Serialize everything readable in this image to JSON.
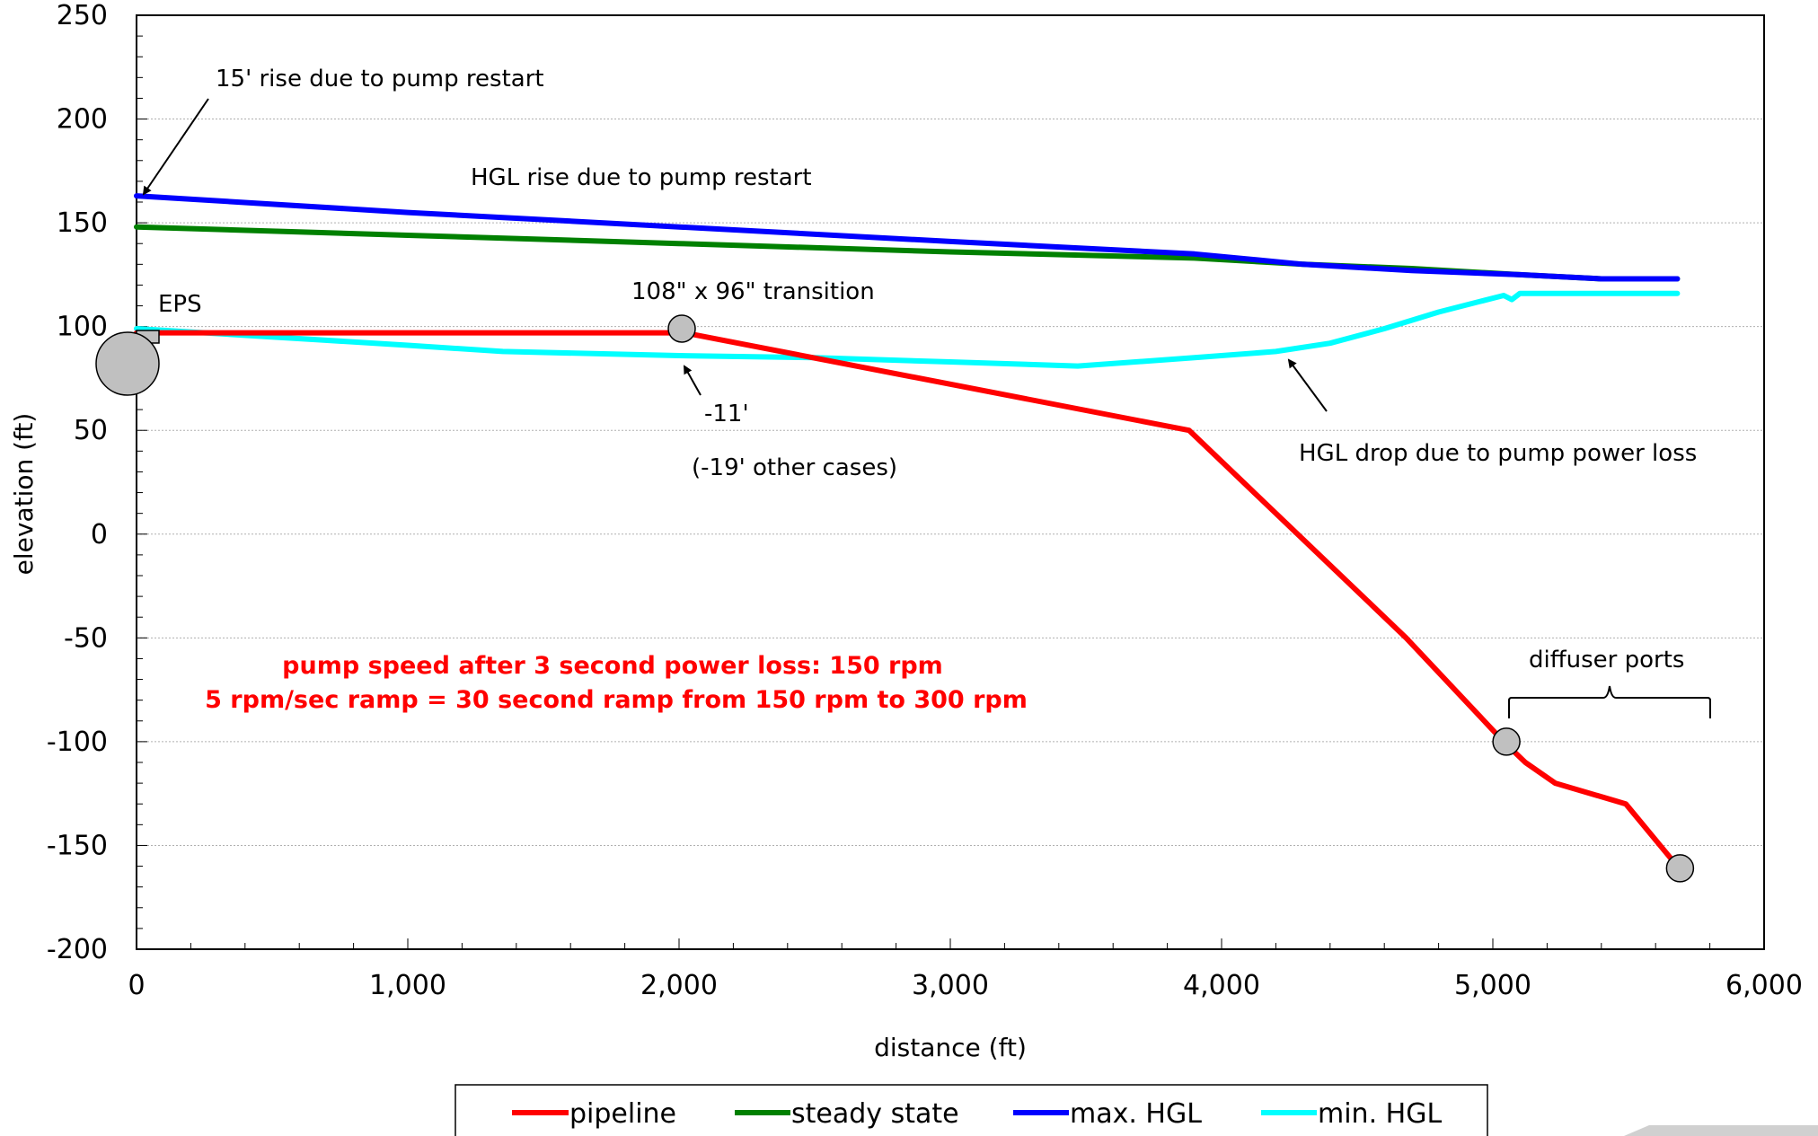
{
  "chart_data": {
    "type": "line",
    "xlabel": "distance (ft)",
    "ylabel": "elevation (ft)",
    "xlim": [
      0,
      6000
    ],
    "ylim": [
      -200,
      250
    ],
    "x_ticks": [
      0,
      1000,
      2000,
      3000,
      4000,
      5000,
      6000
    ],
    "x_tick_labels": [
      "0",
      "1,000",
      "2,000",
      "3,000",
      "4,000",
      "5,000",
      "6,000"
    ],
    "y_ticks": [
      250,
      200,
      150,
      100,
      50,
      0,
      -50,
      -100,
      -150,
      -200
    ],
    "y_tick_labels": [
      "250",
      "200",
      "150",
      "100",
      "50",
      "0",
      "-50",
      "-100",
      "-150",
      "-200"
    ],
    "grid": "horizontal",
    "legend_position": "bottom",
    "series": [
      {
        "name": "pipeline",
        "color": "#ff0000",
        "x": [
          0,
          2000,
          2020,
          3880,
          4680,
          5040,
          5120,
          5230,
          5490,
          5680
        ],
        "y": [
          97,
          97,
          97,
          50,
          -50,
          -100,
          -110,
          -120,
          -130,
          -160
        ]
      },
      {
        "name": "steady state",
        "color": "#008000",
        "x": [
          0,
          1000,
          2000,
          3000,
          3900,
          4300,
          4700,
          5100,
          5400,
          5680
        ],
        "y": [
          148,
          144,
          140,
          136,
          133,
          130,
          128,
          125,
          123,
          123
        ]
      },
      {
        "name": "max. HGL",
        "color": "#0000ff",
        "x": [
          0,
          1000,
          2000,
          3000,
          3900,
          4300,
          4700,
          5100,
          5400,
          5680
        ],
        "y": [
          163,
          155,
          148,
          141,
          135,
          130,
          127,
          125,
          123,
          123
        ]
      },
      {
        "name": "min. HGL",
        "color": "#00ffff",
        "x": [
          0,
          500,
          1000,
          1350,
          2000,
          2500,
          3000,
          3470,
          3900,
          4200,
          4400,
          4600,
          4800,
          4950,
          5040,
          5070,
          5100,
          5130,
          5300,
          5680
        ],
        "y": [
          99,
          95,
          91,
          88,
          86,
          85,
          83,
          81,
          85,
          88,
          92,
          99,
          107,
          112,
          115,
          113,
          116,
          116,
          116,
          116
        ]
      }
    ],
    "markers": [
      {
        "x": 2010,
        "y": 99
      },
      {
        "x": 5050,
        "y": -100
      },
      {
        "x": 5690,
        "y": -161
      }
    ],
    "annotations": {
      "rise_15": "15' rise due to pump restart",
      "hgl_rise": "HGL rise due to pump restart",
      "eps": "EPS",
      "transition": "108\" x 96\" transition",
      "minus11": "-11'",
      "minus19": "(-19' other cases)",
      "hgl_drop": "HGL drop due to pump power loss",
      "diffuser": "diffuser ports",
      "note_line1": "pump speed after 3 second power loss: 150 rpm",
      "note_line2": "5 rpm/sec ramp = 30 second ramp from 150 rpm to 300 rpm"
    },
    "colors": {
      "note_text": "#ff0000",
      "marker_fill": "#c0c0c0"
    }
  }
}
